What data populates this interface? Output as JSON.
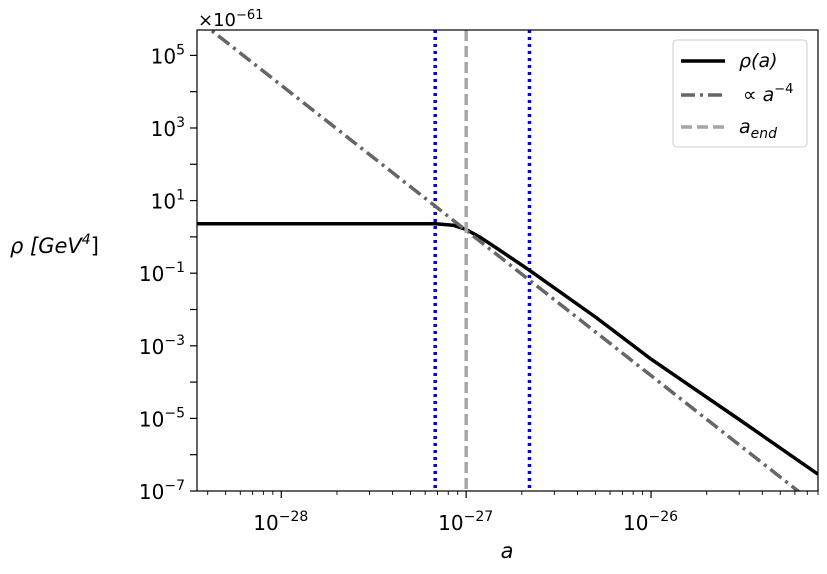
{
  "chart_data": {
    "type": "line",
    "x_scale": "log",
    "y_scale": "log",
    "xlabel": "a",
    "ylabel": "ρ [GeV⁴]",
    "offset_text": "×10⁻⁶¹",
    "xlim": [
      3.5e-29,
      8e-26
    ],
    "ylim": [
      1e-07,
      500000.0
    ],
    "grid": false,
    "legend_position": "top-right",
    "x_ticks": [
      {
        "value": 1e-28,
        "base": "10",
        "exp": "−28"
      },
      {
        "value": 1e-27,
        "base": "10",
        "exp": "−27"
      },
      {
        "value": 1e-26,
        "base": "10",
        "exp": "−26"
      }
    ],
    "y_ticks": [
      {
        "value": 100000.0,
        "base": "10",
        "exp": "5"
      },
      {
        "value": 1000.0,
        "base": "10",
        "exp": "3"
      },
      {
        "value": 10.0,
        "base": "10",
        "exp": "1"
      },
      {
        "value": 0.1,
        "base": "10",
        "exp": "−1"
      },
      {
        "value": 0.001,
        "base": "10",
        "exp": "−3"
      },
      {
        "value": 1e-05,
        "base": "10",
        "exp": "−5"
      },
      {
        "value": 1e-07,
        "base": "10",
        "exp": "−7"
      }
    ],
    "series": [
      {
        "name": "ρ(a)",
        "color": "#000000",
        "style": "solid",
        "x": [
          3.5e-29,
          1e-28,
          3e-28,
          6.8e-28,
          8.5e-28,
          1e-27,
          1.2e-27,
          1.5e-27,
          2.2e-27,
          5e-27,
          1e-26,
          3e-26,
          8e-26
        ],
        "y": [
          2.3,
          2.3,
          2.3,
          2.3,
          2.1,
          1.6,
          0.95,
          0.45,
          0.12,
          0.0062,
          0.00043,
          9.3e-06,
          2.9e-07
        ]
      },
      {
        "name": "∝ a⁻⁴",
        "color": "#666666",
        "style": "dash-dot",
        "x": [
          3.5e-29,
          8e-26
        ],
        "y": [
          1000000.0,
          3.7e-08
        ],
        "line_law": "power -4"
      },
      {
        "name": "a_end",
        "color": "#a6a6a6",
        "style": "dashed",
        "vertical_line_x": 1e-27
      }
    ],
    "extra_vertical_lines": [
      {
        "x": 6.8e-28,
        "color": "#0000dd",
        "style": "dotted"
      },
      {
        "x": 2.2e-27,
        "color": "#0000dd",
        "style": "dotted"
      }
    ],
    "legend": [
      {
        "label": "ρ(a)",
        "color": "#000000",
        "style": "solid"
      },
      {
        "label": "∝ a⁻⁴",
        "color": "#666666",
        "style": "dash-dot"
      },
      {
        "label": "a_end",
        "color": "#a6a6a6",
        "style": "dashed"
      }
    ]
  }
}
